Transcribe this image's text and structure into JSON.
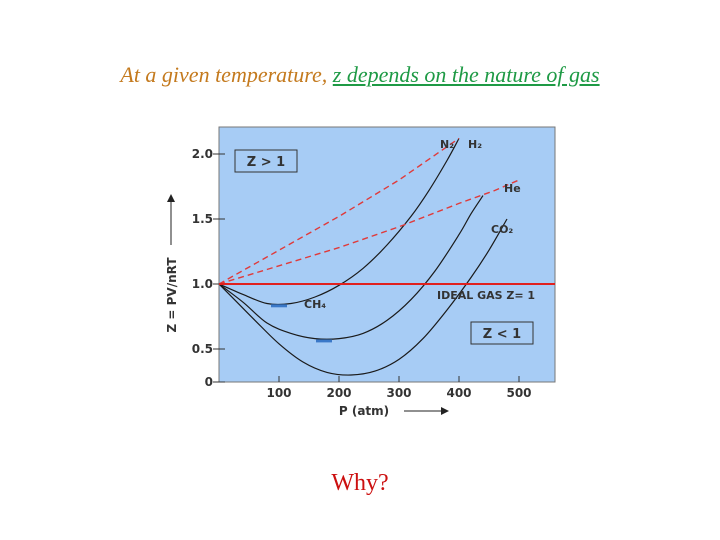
{
  "slide": {
    "title_part1": "At a given temperature, ",
    "title_part2": "z depends on the nature of gas",
    "footer": "Why?"
  },
  "colors": {
    "plot_bg": "#a7ccf5",
    "ideal_line": "#e0201e",
    "curve": "#1a1a1a",
    "dashed": "#e03a3a"
  },
  "chart_data": {
    "type": "line",
    "xlabel": "P (atm)",
    "ylabel": "Z = PV/nRT",
    "xlim": [
      0,
      560
    ],
    "ylim": [
      0,
      2.2
    ],
    "x_ticks": [
      {
        "value": 100,
        "label": "100"
      },
      {
        "value": 200,
        "label": "200"
      },
      {
        "value": 300,
        "label": "300"
      },
      {
        "value": 400,
        "label": "400"
      },
      {
        "value": 500,
        "label": "500"
      }
    ],
    "y_ticks": [
      {
        "value": 0,
        "label": "0"
      },
      {
        "value": 0.5,
        "label": "0.5"
      },
      {
        "value": 1.0,
        "label": "1.0"
      },
      {
        "value": 1.5,
        "label": "1.5"
      },
      {
        "value": 2.0,
        "label": "2.0"
      }
    ],
    "series": [
      {
        "name": "N₂",
        "style": "solid",
        "points": [
          [
            0,
            1.0
          ],
          [
            40,
            0.92
          ],
          [
            80,
            0.85
          ],
          [
            120,
            0.85
          ],
          [
            160,
            0.9
          ],
          [
            200,
            0.99
          ],
          [
            240,
            1.12
          ],
          [
            280,
            1.3
          ],
          [
            320,
            1.52
          ],
          [
            350,
            1.72
          ],
          [
            380,
            1.95
          ],
          [
            400,
            2.12
          ]
        ]
      },
      {
        "name": "H₂",
        "style": "dashed",
        "points": [
          [
            0,
            1.0
          ],
          [
            100,
            1.26
          ],
          [
            200,
            1.52
          ],
          [
            300,
            1.8
          ],
          [
            400,
            2.12
          ]
        ]
      },
      {
        "name": "He",
        "style": "dashed",
        "points": [
          [
            0,
            1.0
          ],
          [
            100,
            1.14
          ],
          [
            200,
            1.28
          ],
          [
            300,
            1.44
          ],
          [
            400,
            1.62
          ],
          [
            460,
            1.72
          ],
          [
            500,
            1.8
          ]
        ]
      },
      {
        "name": "CO₂",
        "style": "solid",
        "points": [
          [
            0,
            1.0
          ],
          [
            30,
            0.86
          ],
          [
            60,
            0.72
          ],
          [
            100,
            0.54
          ],
          [
            140,
            0.4
          ],
          [
            180,
            0.32
          ],
          [
            220,
            0.3
          ],
          [
            260,
            0.33
          ],
          [
            300,
            0.42
          ],
          [
            340,
            0.58
          ],
          [
            380,
            0.8
          ],
          [
            420,
            1.05
          ],
          [
            450,
            1.26
          ],
          [
            480,
            1.5
          ]
        ]
      },
      {
        "name": "CH₄",
        "style": "solid",
        "points": [
          [
            0,
            1.0
          ],
          [
            40,
            0.86
          ],
          [
            80,
            0.7
          ],
          [
            120,
            0.62
          ],
          [
            160,
            0.58
          ],
          [
            200,
            0.58
          ],
          [
            240,
            0.62
          ],
          [
            280,
            0.72
          ],
          [
            320,
            0.88
          ],
          [
            360,
            1.1
          ],
          [
            400,
            1.38
          ],
          [
            420,
            1.54
          ],
          [
            440,
            1.68
          ]
        ]
      },
      {
        "name": "IDEAL GAS Z= 1",
        "style": "ideal",
        "points": [
          [
            0,
            1.0
          ],
          [
            560,
            1.0
          ]
        ]
      }
    ],
    "annotations": {
      "z_gt_1": "Z > 1",
      "z_lt_1": "Z < 1",
      "n2_label": "N₂",
      "h2_label": "H₂",
      "he_label": "He",
      "co2_label": "CO₂",
      "ch4_label": "CH₄",
      "ideal_label": "IDEAL GAS Z= 1"
    }
  }
}
